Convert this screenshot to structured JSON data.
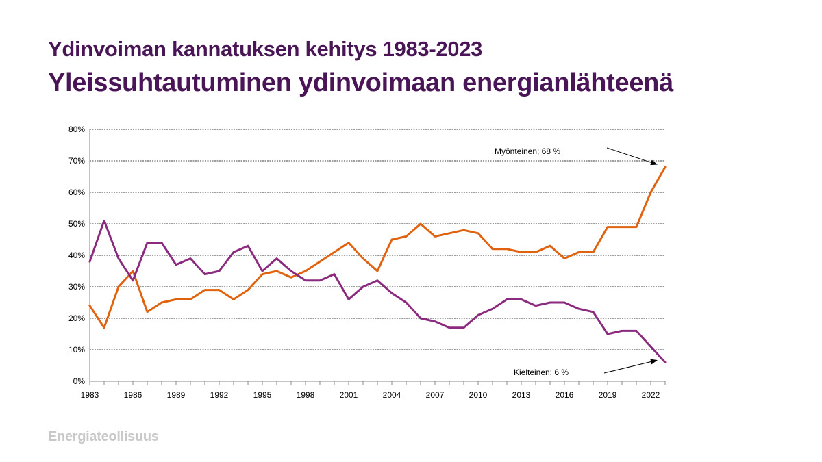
{
  "title": "Ydinvoiman kannatuksen kehitys 1983-2023",
  "subtitle": "Yleissuhtautuminen ydinvoimaan energianlähteenä",
  "logo_text": "Energiateollisuus",
  "colors": {
    "title": "#4a1557",
    "series_myonteinen": "#e0620f",
    "series_kielteinen": "#8b2a7e",
    "logo": "#c9c9c9"
  },
  "chart_data": {
    "type": "line",
    "x": [
      1983,
      1984,
      1985,
      1986,
      1987,
      1988,
      1989,
      1990,
      1991,
      1992,
      1993,
      1994,
      1995,
      1996,
      1997,
      1998,
      1999,
      2000,
      2001,
      2002,
      2003,
      2004,
      2005,
      2006,
      2007,
      2008,
      2009,
      2010,
      2011,
      2012,
      2013,
      2014,
      2015,
      2016,
      2017,
      2018,
      2019,
      2020,
      2021,
      2022,
      2023
    ],
    "series": [
      {
        "key": "myonteinen",
        "color": "#e0620f",
        "values": [
          24,
          17,
          30,
          35,
          22,
          25,
          26,
          26,
          29,
          29,
          26,
          29,
          34,
          35,
          33,
          35,
          38,
          41,
          44,
          39,
          35,
          45,
          46,
          50,
          46,
          47,
          48,
          47,
          42,
          42,
          41,
          41,
          43,
          39,
          41,
          41,
          49,
          49,
          49,
          60,
          68
        ]
      },
      {
        "key": "kielteinen",
        "color": "#8b2a7e",
        "values": [
          38,
          51,
          39,
          32,
          44,
          44,
          37,
          39,
          34,
          35,
          41,
          43,
          35,
          39,
          35,
          32,
          32,
          34,
          26,
          30,
          32,
          28,
          25,
          20,
          19,
          17,
          17,
          21,
          23,
          26,
          26,
          24,
          25,
          25,
          23,
          22,
          15,
          16,
          16,
          11,
          6
        ]
      }
    ],
    "x_ticks": [
      "1983",
      "1986",
      "1989",
      "1992",
      "1995",
      "1998",
      "2001",
      "2004",
      "2007",
      "2010",
      "2013",
      "2016",
      "2019",
      "2022"
    ],
    "y_ticks": [
      "0%",
      "10%",
      "20%",
      "30%",
      "40%",
      "50%",
      "60%",
      "70%",
      "80%"
    ],
    "ylim": [
      0,
      80
    ],
    "xlim": [
      1983,
      2023
    ],
    "grid": true,
    "annotations": [
      {
        "text": "Myönteinen;  68 %",
        "series": "myonteinen",
        "x": 2023,
        "y": 68
      },
      {
        "text": "Kielteinen; 6 %",
        "series": "kielteinen",
        "x": 2023,
        "y": 6
      }
    ]
  }
}
